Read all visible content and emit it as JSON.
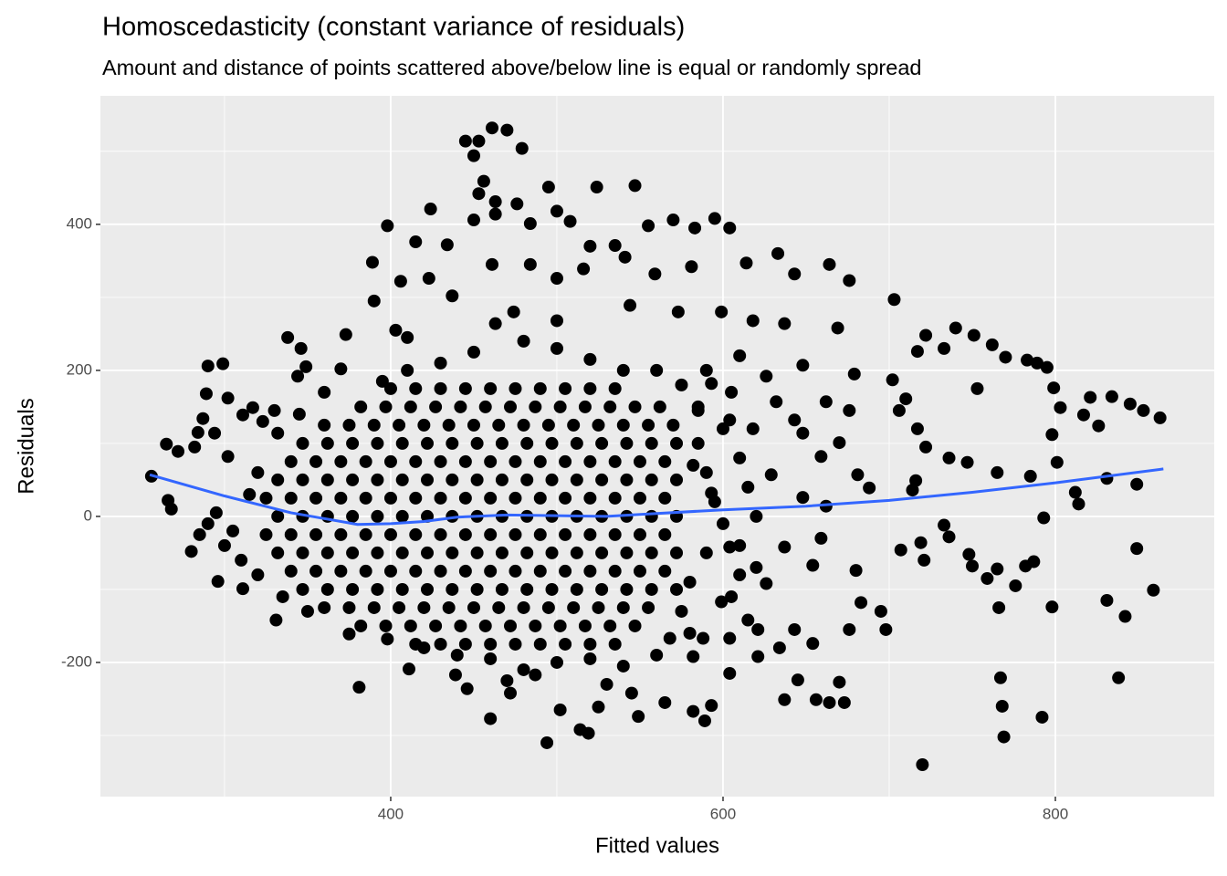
{
  "chart_data": {
    "type": "scatter",
    "title": "Homoscedasticity (constant variance of residuals)",
    "subtitle": "Amount and distance of points scattered above/below line is equal or randomly spread",
    "x_label": "Fitted values",
    "y_label": "Residuals",
    "xlim": [
      225.3,
      895.6
    ],
    "ylim": [
      -383.75,
      576
    ],
    "xticks": [
      400,
      600,
      800
    ],
    "yticks": [
      -200,
      0,
      200,
      400
    ],
    "x_minor_ticks": [
      300,
      500,
      700
    ],
    "y_minor_ticks": [
      -300,
      -100,
      100,
      300,
      500
    ],
    "grid": true,
    "points": {
      "color": "#000000",
      "x": [
        461,
        470,
        445,
        453,
        479,
        450,
        456,
        453,
        463,
        495,
        524,
        547,
        398,
        424,
        450,
        463,
        476,
        484,
        500,
        508,
        520,
        535,
        555,
        570,
        583,
        604,
        595,
        415,
        434,
        389,
        406,
        423,
        437,
        461,
        484,
        500,
        516,
        541,
        559,
        581,
        614,
        633,
        664,
        676,
        643,
        703,
        390,
        403,
        410,
        463,
        474,
        500,
        544,
        573,
        599,
        618,
        637,
        669,
        256,
        265,
        272,
        266,
        268,
        287,
        284,
        289,
        290,
        299,
        282,
        302,
        294,
        296,
        280,
        302,
        311,
        317,
        323,
        330,
        338,
        346,
        349,
        344,
        373,
        370,
        332,
        311,
        331,
        375,
        381,
        398,
        290,
        285,
        300,
        310,
        320,
        305,
        295,
        315,
        320,
        335,
        350,
        345,
        360,
        714,
        716,
        722,
        717,
        706,
        710,
        702,
        717,
        722,
        733,
        740,
        751,
        753,
        747,
        736,
        762,
        770,
        783,
        789,
        795,
        799,
        798,
        801,
        803,
        821,
        817,
        826,
        834,
        845,
        853,
        863,
        831,
        849,
        793,
        812,
        814,
        785,
        765,
        748,
        750,
        759,
        765,
        776,
        782,
        787,
        798,
        766,
        767,
        768,
        769,
        792,
        831,
        842,
        838,
        849,
        859,
        720,
        721,
        719,
        736,
        733,
        707,
        695,
        698,
        680,
        683,
        676,
        670,
        673,
        656,
        637,
        664,
        645,
        621,
        604,
        593,
        589,
        582,
        565,
        549,
        514,
        494,
        519,
        472,
        460,
        439,
        411,
        446,
        487,
        502,
        525,
        545,
        659,
        648,
        670,
        662,
        679,
        676,
        643,
        632,
        629,
        648,
        662,
        659,
        654,
        637,
        626,
        615,
        643,
        654,
        634,
        621,
        604,
        681,
        688,
        648,
        626,
        610,
        593,
        604,
        618,
        585,
        582,
        593,
        604,
        610,
        599,
        588,
        582,
        568,
        585,
        590,
        595,
        600,
        590,
        580,
        575,
        600,
        610,
        615,
        620,
        610,
        620,
        605,
        585,
        575,
        590,
        605,
        560,
        540,
        520,
        500,
        480,
        450,
        430,
        410,
        395,
        560,
        540,
        520,
        500,
        480,
        460,
        440,
        420,
        580,
        530,
        470,
        400,
        415,
        430,
        445,
        460,
        475,
        490,
        505,
        520,
        535,
        382,
        397,
        412,
        427,
        442,
        457,
        472,
        487,
        502,
        517,
        532,
        547,
        562,
        360,
        375,
        390,
        405,
        420,
        435,
        450,
        465,
        480,
        495,
        510,
        525,
        540,
        555,
        570,
        347,
        362,
        377,
        392,
        407,
        422,
        437,
        452,
        467,
        482,
        497,
        512,
        527,
        542,
        557,
        572,
        340,
        355,
        370,
        385,
        400,
        415,
        430,
        445,
        460,
        475,
        490,
        505,
        520,
        535,
        550,
        565,
        332,
        347,
        362,
        377,
        392,
        407,
        422,
        437,
        452,
        467,
        482,
        497,
        512,
        527,
        542,
        557,
        572,
        325,
        340,
        355,
        370,
        385,
        400,
        415,
        430,
        445,
        460,
        475,
        490,
        505,
        520,
        535,
        550,
        565,
        332,
        347,
        362,
        377,
        392,
        407,
        422,
        437,
        452,
        467,
        482,
        497,
        512,
        527,
        542,
        557,
        572,
        325,
        340,
        355,
        370,
        385,
        400,
        415,
        430,
        445,
        460,
        475,
        490,
        505,
        520,
        535,
        550,
        565,
        332,
        347,
        362,
        377,
        392,
        407,
        422,
        437,
        452,
        467,
        482,
        497,
        512,
        527,
        542,
        557,
        572,
        340,
        355,
        370,
        385,
        400,
        415,
        430,
        445,
        460,
        475,
        490,
        505,
        520,
        535,
        550,
        565,
        347,
        362,
        377,
        392,
        407,
        422,
        437,
        452,
        467,
        482,
        497,
        512,
        527,
        542,
        557,
        572,
        360,
        375,
        390,
        405,
        420,
        435,
        450,
        465,
        480,
        495,
        510,
        525,
        540,
        555,
        382,
        397,
        412,
        427,
        442,
        457,
        472,
        487,
        502,
        517,
        532,
        547,
        415,
        430,
        445,
        460,
        475,
        490,
        505,
        520,
        535
      ],
      "values": [
        532,
        529,
        514,
        514,
        504,
        494,
        459,
        442,
        431,
        451,
        451,
        453,
        398,
        421,
        406,
        414,
        428,
        401,
        418,
        404,
        370,
        371,
        398,
        406,
        395,
        395,
        408,
        376,
        372,
        348,
        322,
        326,
        302,
        345,
        345,
        326,
        339,
        355,
        332,
        342,
        347,
        360,
        345,
        323,
        332,
        297,
        295,
        255,
        245,
        264,
        280,
        268,
        289,
        280,
        280,
        268,
        264,
        258,
        55,
        99,
        89,
        22,
        10,
        134,
        115,
        168,
        206,
        209,
        95,
        162,
        114,
        -89,
        -48,
        82,
        139,
        149,
        130,
        145,
        245,
        230,
        205,
        192,
        249,
        202,
        114,
        -99,
        -142,
        -161,
        -234,
        -168,
        -10,
        -25,
        -40,
        -60,
        -80,
        -20,
        5,
        30,
        60,
        -110,
        -130,
        140,
        170,
        36,
        49,
        95,
        120,
        145,
        161,
        187,
        226,
        248,
        230,
        258,
        248,
        175,
        74,
        80,
        235,
        218,
        214,
        210,
        204,
        176,
        112,
        74,
        149,
        163,
        139,
        124,
        164,
        154,
        145,
        135,
        52,
        44,
        -2,
        33,
        17,
        55,
        60,
        -52,
        -68,
        -85,
        -72,
        -95,
        -68,
        -62,
        -124,
        -125,
        -221,
        -260,
        -302,
        -275,
        -115,
        -137,
        -221,
        -44,
        -101,
        -340,
        -60,
        -36,
        -28,
        -12,
        -46,
        -130,
        -155,
        -74,
        -118,
        -155,
        -227,
        -255,
        -251,
        -251,
        -255,
        -224,
        -192,
        -215,
        -259,
        -280,
        -267,
        -255,
        -274,
        -292,
        -310,
        -297,
        -242,
        -277,
        -217,
        -209,
        -236,
        -217,
        -265,
        -261,
        -242,
        82,
        114,
        101,
        157,
        195,
        145,
        132,
        157,
        57,
        26,
        14,
        -30,
        -67,
        -42,
        -92,
        -142,
        -155,
        -174,
        -180,
        -155,
        -167,
        57,
        39,
        207,
        192,
        220,
        182,
        132,
        120,
        145,
        70,
        32,
        -42,
        -80,
        -117,
        -167,
        -192,
        -167,
        100,
        60,
        20,
        -10,
        -50,
        -90,
        -130,
        120,
        80,
        40,
        0,
        -40,
        -70,
        -110,
        150,
        180,
        200,
        170,
        200,
        200,
        215,
        230,
        240,
        225,
        210,
        200,
        185,
        -190,
        -205,
        -195,
        -200,
        -210,
        -195,
        -190,
        -180,
        -160,
        -230,
        -225,
        175,
        175,
        175,
        175,
        175,
        175,
        175,
        175,
        175,
        175,
        150,
        150,
        150,
        150,
        150,
        150,
        150,
        150,
        150,
        150,
        150,
        150,
        150,
        125,
        125,
        125,
        125,
        125,
        125,
        125,
        125,
        125,
        125,
        125,
        125,
        125,
        125,
        125,
        100,
        100,
        100,
        100,
        100,
        100,
        100,
        100,
        100,
        100,
        100,
        100,
        100,
        100,
        100,
        100,
        75,
        75,
        75,
        75,
        75,
        75,
        75,
        75,
        75,
        75,
        75,
        75,
        75,
        75,
        75,
        75,
        50,
        50,
        50,
        50,
        50,
        50,
        50,
        50,
        50,
        50,
        50,
        50,
        50,
        50,
        50,
        50,
        50,
        25,
        25,
        25,
        25,
        25,
        25,
        25,
        25,
        25,
        25,
        25,
        25,
        25,
        25,
        25,
        25,
        25,
        0,
        0,
        0,
        0,
        0,
        0,
        0,
        0,
        0,
        0,
        0,
        0,
        0,
        0,
        0,
        0,
        0,
        -25,
        -25,
        -25,
        -25,
        -25,
        -25,
        -25,
        -25,
        -25,
        -25,
        -25,
        -25,
        -25,
        -25,
        -25,
        -25,
        -25,
        -50,
        -50,
        -50,
        -50,
        -50,
        -50,
        -50,
        -50,
        -50,
        -50,
        -50,
        -50,
        -50,
        -50,
        -50,
        -50,
        -50,
        -75,
        -75,
        -75,
        -75,
        -75,
        -75,
        -75,
        -75,
        -75,
        -75,
        -75,
        -75,
        -75,
        -75,
        -75,
        -75,
        -100,
        -100,
        -100,
        -100,
        -100,
        -100,
        -100,
        -100,
        -100,
        -100,
        -100,
        -100,
        -100,
        -100,
        -100,
        -100,
        -125,
        -125,
        -125,
        -125,
        -125,
        -125,
        -125,
        -125,
        -125,
        -125,
        -125,
        -125,
        -125,
        -125,
        -150,
        -150,
        -150,
        -150,
        -150,
        -150,
        -150,
        -150,
        -150,
        -150,
        -150,
        -150,
        -175,
        -175,
        -175,
        -175,
        -175,
        -175,
        -175,
        -175,
        -175
      ]
    },
    "smooth": {
      "color": "#3366FF",
      "x": [
        255,
        300,
        340,
        380,
        400,
        420,
        440,
        470,
        500,
        530,
        560,
        600,
        650,
        700,
        750,
        800,
        865
      ],
      "values": [
        57,
        28,
        5,
        -11,
        -10,
        -7,
        -1,
        2,
        1,
        0,
        4,
        9,
        14,
        22,
        33,
        46,
        65
      ]
    }
  }
}
